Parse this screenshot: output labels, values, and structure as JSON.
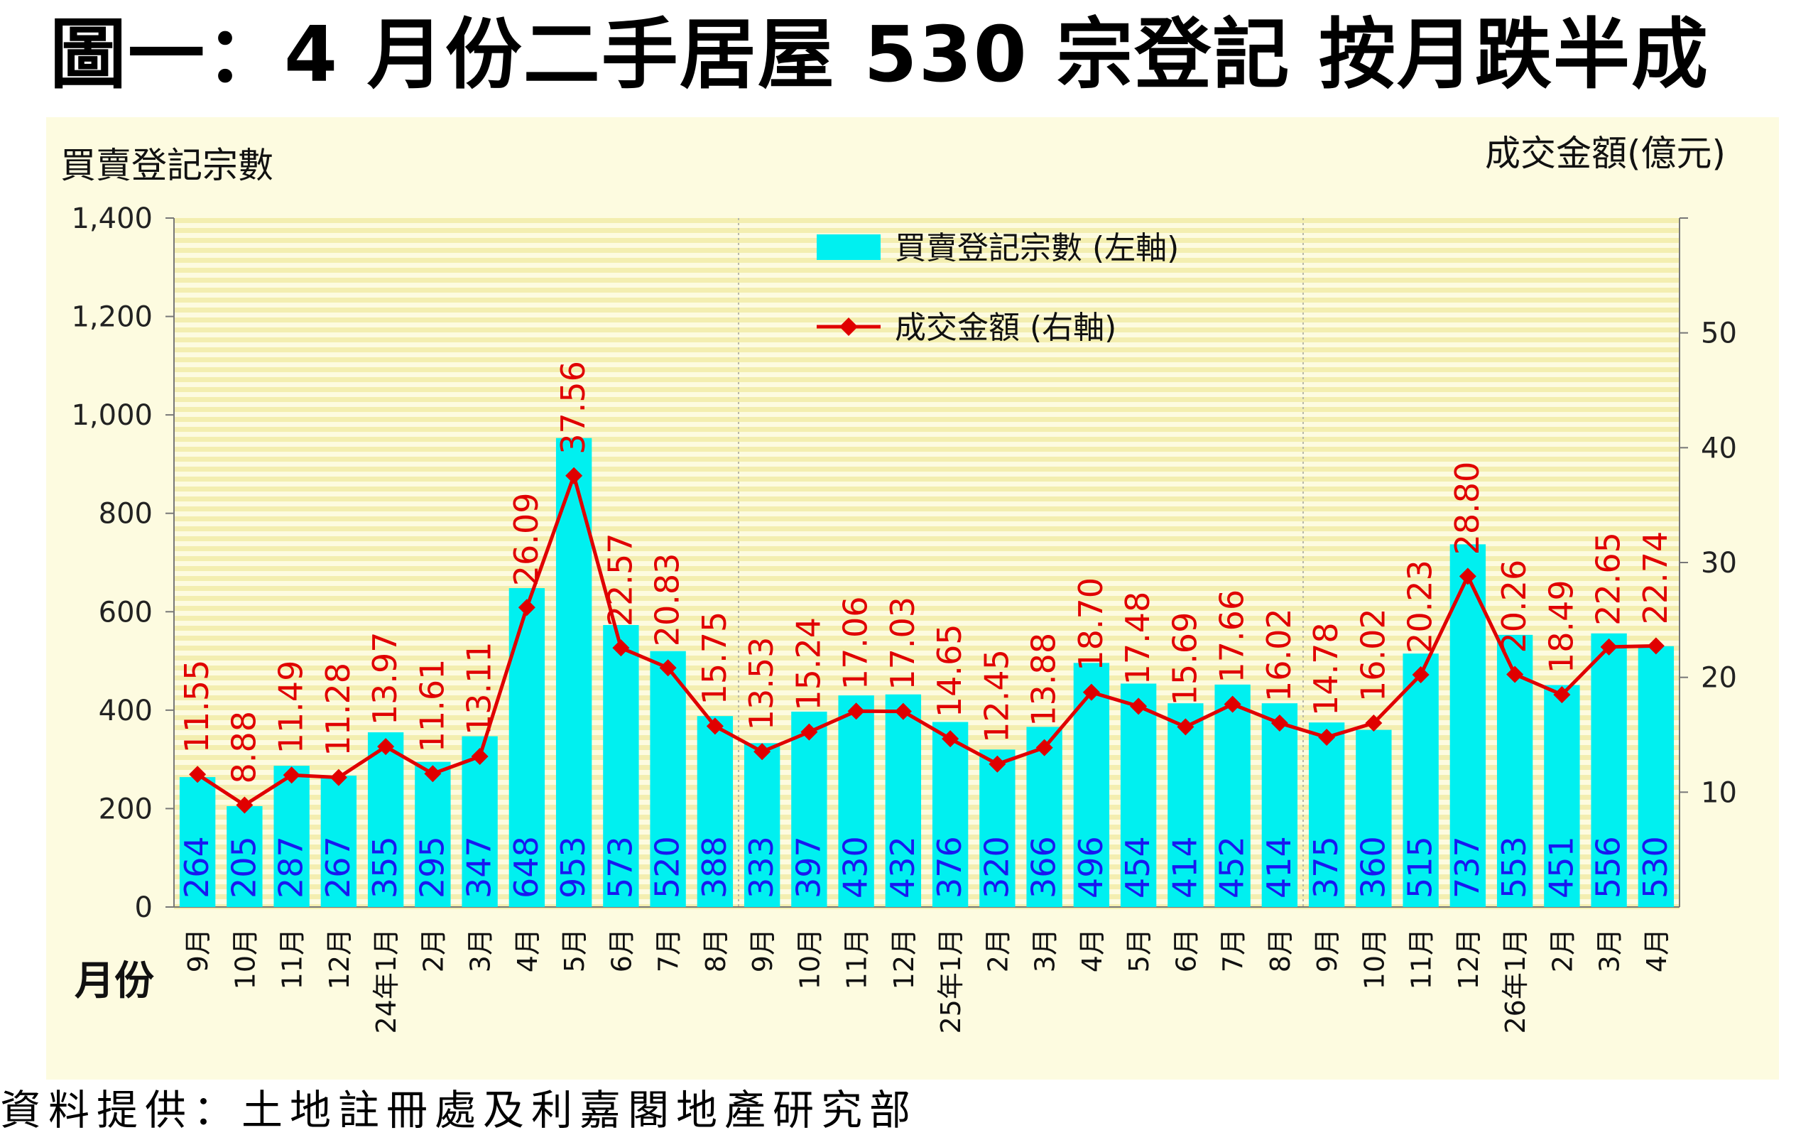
{
  "title": "圖一：4 月份二手居屋 530 宗登記  按月跌半成",
  "source": "資料提供：土地註冊處及利嘉閣地產研究部",
  "chart_data": {
    "type": "bar+line",
    "left_axis_label": "買賣登記宗數",
    "right_axis_label": "成交金額(億元)",
    "x_axis_label": "月份",
    "left_ylim": [
      0,
      1400
    ],
    "left_ticks": [
      "0",
      "200",
      "400",
      "600",
      "800",
      "1,000",
      "1,200",
      "1,400"
    ],
    "right_ylim": [
      0,
      60
    ],
    "right_ticks": [
      "10",
      "20",
      "30",
      "40",
      "50"
    ],
    "categories": [
      "9月",
      "10月",
      "11月",
      "12月",
      "1月",
      "2月",
      "3月",
      "4月",
      "5月",
      "6月",
      "7月",
      "8月",
      "9月",
      "10月",
      "11月",
      "12月",
      "1月",
      "2月",
      "3月",
      "4月",
      "5月",
      "6月",
      "7月",
      "8月",
      "9月",
      "10月",
      "11月",
      "12月",
      "1月",
      "2月",
      "3月",
      "4月"
    ],
    "year_labels": [
      {
        "index": 4,
        "label": "24年"
      },
      {
        "index": 16,
        "label": "25年"
      },
      {
        "index": 28,
        "label": "26年"
      }
    ],
    "legend": [
      "買賣登記宗數 (左軸)",
      "成交金額 (右軸)"
    ],
    "series": [
      {
        "name": "買賣登記宗數 (左軸)",
        "type": "bar",
        "color": "#00f0f0",
        "label_color": "#1818f0",
        "values": [
          264,
          205,
          287,
          267,
          355,
          295,
          347,
          648,
          953,
          573,
          520,
          388,
          333,
          397,
          430,
          432,
          376,
          320,
          366,
          496,
          454,
          414,
          452,
          414,
          375,
          360,
          515,
          737,
          553,
          451,
          556,
          530
        ]
      },
      {
        "name": "成交金額 (右軸)",
        "type": "line",
        "color": "#e00000",
        "values": [
          11.55,
          8.88,
          11.49,
          11.28,
          13.97,
          11.61,
          13.11,
          26.09,
          37.56,
          22.57,
          20.83,
          15.75,
          13.53,
          15.24,
          17.06,
          17.03,
          14.65,
          12.45,
          13.88,
          18.7,
          17.48,
          15.69,
          17.66,
          16.02,
          14.78,
          16.02,
          20.23,
          28.8,
          20.26,
          18.49,
          22.65,
          22.74
        ],
        "labels": [
          "11.55",
          "8.88",
          "11.49",
          "11.28",
          "13.97",
          "11.61",
          "13.11",
          "26.09",
          "37.56",
          "22.57",
          "20.83",
          "15.75",
          "13.53",
          "15.24",
          "17.06",
          "17.03",
          "14.65",
          "12.45",
          "13.88",
          "18.70",
          "17.48",
          "15.69",
          "17.66",
          "16.02",
          "14.78",
          "16.02",
          "20.23",
          "28.80",
          "20.26",
          "18.49",
          "22.65",
          "22.74"
        ]
      }
    ]
  }
}
